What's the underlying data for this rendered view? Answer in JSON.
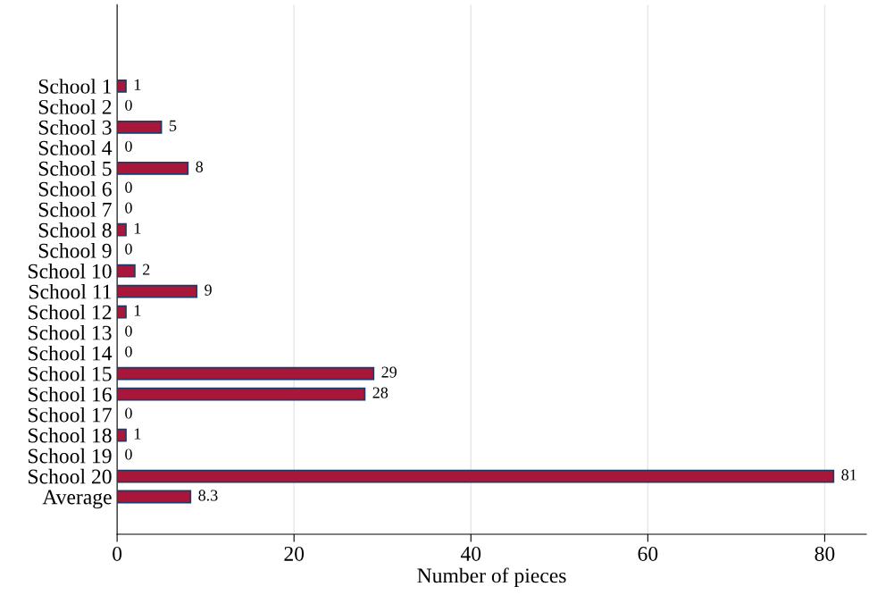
{
  "chart_data": {
    "type": "bar",
    "orientation": "horizontal",
    "xlabel": "Number of pieces",
    "categories": [
      "School 1",
      "School 2",
      "School 3",
      "School 4",
      "School 5",
      "School 6",
      "School 7",
      "School 8",
      "School 9",
      "School 10",
      "School 11",
      "School 12",
      "School 13",
      "School 14",
      "School 15",
      "School 16",
      "School 17",
      "School 18",
      "School 19",
      "School 20",
      "Average"
    ],
    "values": [
      1,
      0,
      5,
      0,
      8,
      0,
      0,
      1,
      0,
      2,
      9,
      1,
      0,
      0,
      29,
      28,
      0,
      1,
      0,
      81,
      8.3
    ],
    "color": "#a8173a",
    "xlim": [
      0,
      84.7
    ],
    "xticks": [
      0,
      20,
      40,
      60,
      80
    ],
    "grid": "x",
    "data_labels": true,
    "legend": false
  }
}
